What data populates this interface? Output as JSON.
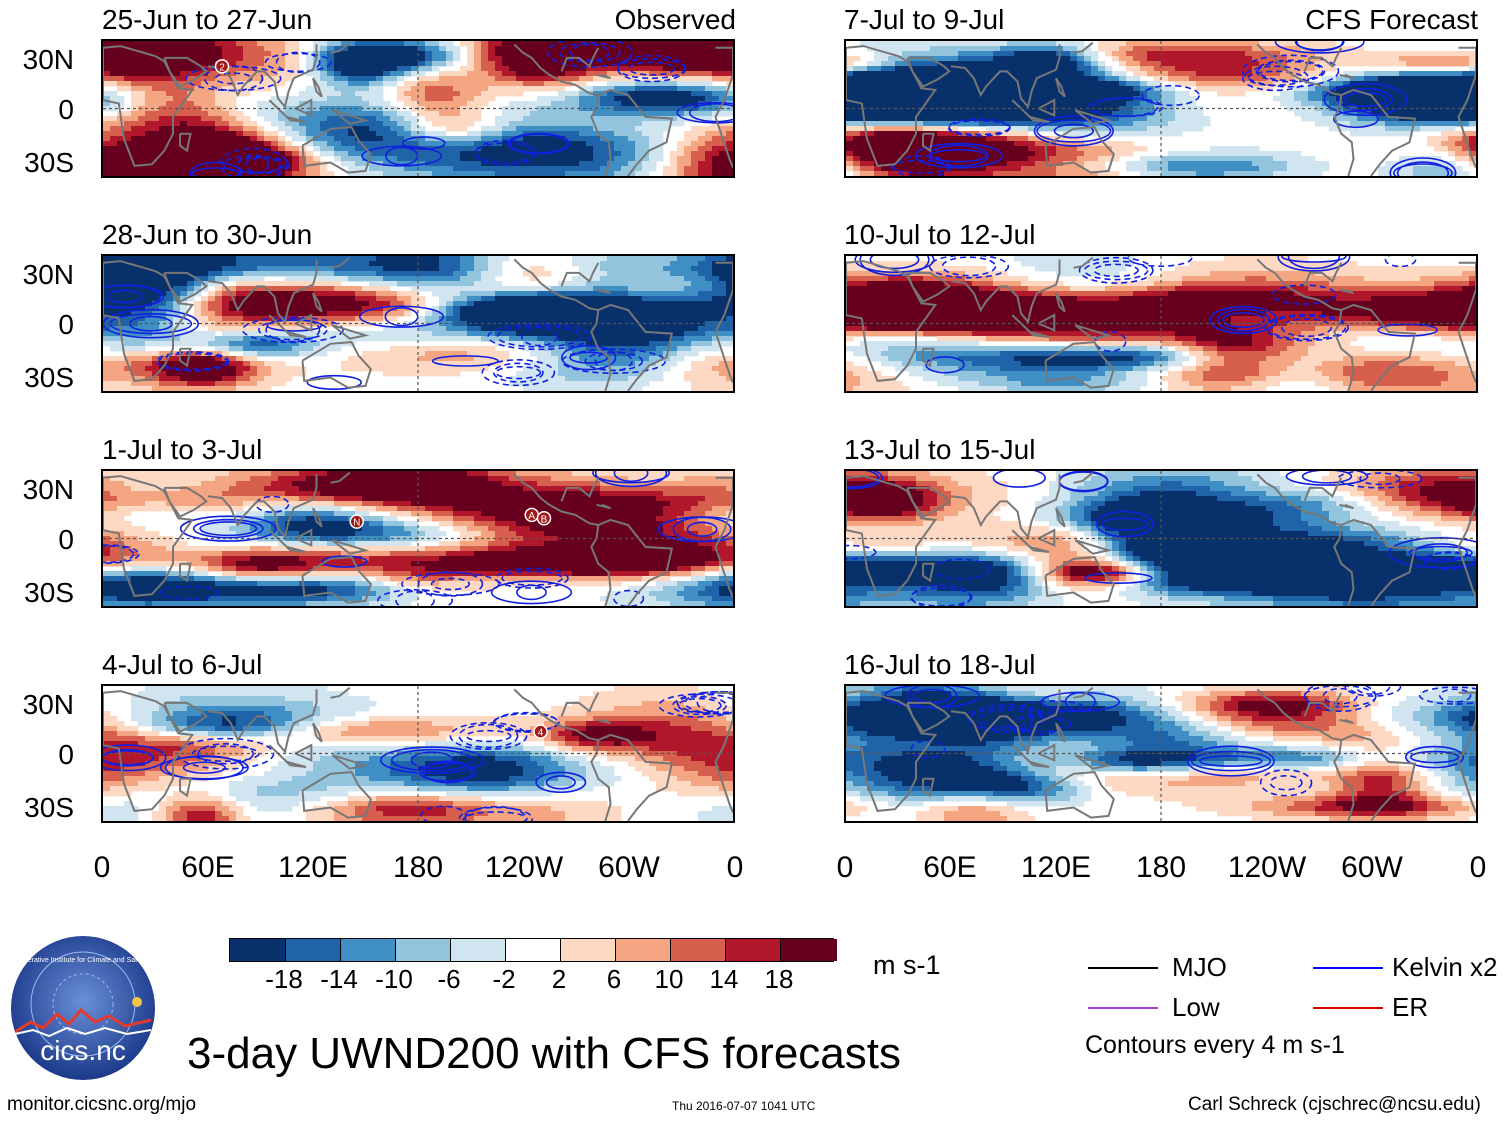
{
  "chart_data": {
    "type": "heatmap",
    "title": "3-day UWND200 with CFS forecasts",
    "variable": "UWND200",
    "units": "m s-1",
    "x_ticks": [
      "0",
      "60E",
      "120E",
      "180",
      "120W",
      "60W",
      "0"
    ],
    "y_ticks": [
      "30N",
      "0",
      "30S"
    ],
    "colorbar": {
      "colors": [
        "#08306b",
        "#1f63a8",
        "#3f8fc5",
        "#92c4de",
        "#d1e5f0",
        "#ffffff",
        "#fdd9c4",
        "#f4a582",
        "#d6604d",
        "#b2182b",
        "#67001f"
      ],
      "labels": [
        "-18",
        "-14",
        "-10",
        "-6",
        "-2",
        "2",
        "6",
        "10",
        "14",
        "18"
      ]
    },
    "panels": [
      {
        "id": "obs1",
        "title": "25-Jun to 27-Jun",
        "tag": "Observed",
        "storms": [
          {
            "label": "2",
            "lon": 68,
            "lat": 25
          }
        ]
      },
      {
        "id": "obs2",
        "title": "28-Jun to 30-Jun",
        "tag": "",
        "storms": []
      },
      {
        "id": "obs3",
        "title": "1-Jul to 3-Jul",
        "tag": "",
        "storms": [
          {
            "label": "N",
            "lon": 145,
            "lat": 10
          },
          {
            "label": "A",
            "lon": 245,
            "lat": 14
          },
          {
            "label": "B",
            "lon": 252,
            "lat": 12
          }
        ]
      },
      {
        "id": "obs4",
        "title": "4-Jul to 6-Jul",
        "tag": "",
        "storms": [
          {
            "label": "4",
            "lon": 250,
            "lat": 13
          }
        ]
      },
      {
        "id": "fc1",
        "title": "7-Jul to 9-Jul",
        "tag": "CFS Forecast",
        "storms": []
      },
      {
        "id": "fc2",
        "title": "10-Jul to 12-Jul",
        "tag": "",
        "storms": []
      },
      {
        "id": "fc3",
        "title": "13-Jul to 15-Jul",
        "tag": "",
        "storms": []
      },
      {
        "id": "fc4",
        "title": "16-Jul to 18-Jul",
        "tag": "",
        "storms": []
      }
    ],
    "legend": [
      {
        "label": "MJO",
        "color": "#000000"
      },
      {
        "label": "Kelvin x2",
        "color": "#0000ff"
      },
      {
        "label": "Low",
        "color": "#a040d0"
      },
      {
        "label": "ER",
        "color": "#e00000"
      }
    ],
    "contour_note": "Contours every 4 m s-1"
  },
  "logo_text": "cics.nc",
  "logo_ring_text": "Cooperative Institute for Climate and Satellites",
  "footer": {
    "left": "monitor.cicsnc.org/mjo",
    "center": "Thu 2016-07-07 1041 UTC",
    "right": "Carl Schreck (cjschrec@ncsu.edu)"
  },
  "colors": {
    "coast": "#777777",
    "equator": "#555555"
  }
}
